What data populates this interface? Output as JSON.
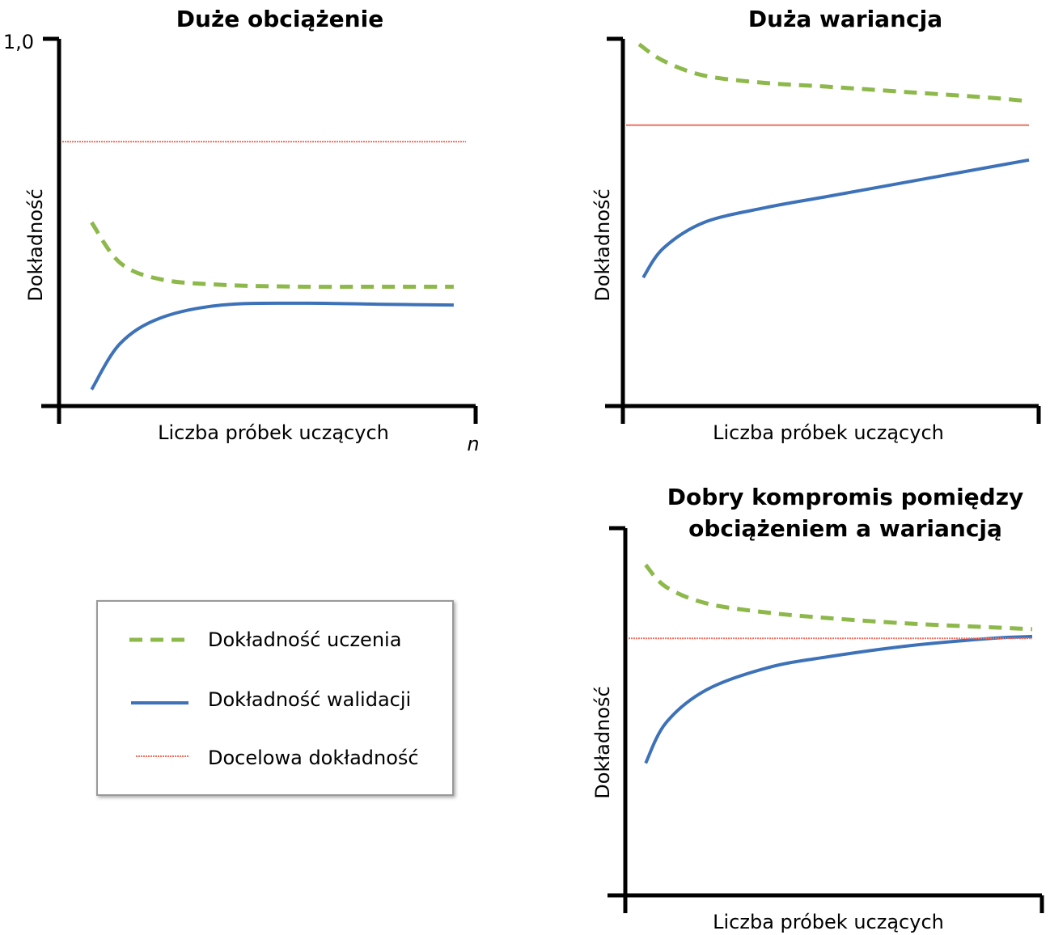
{
  "colors": {
    "train": "#8db84a",
    "val": "#3d72b8",
    "target": "#f07060",
    "axis": "#000000"
  },
  "legend": {
    "items": [
      {
        "key": "train",
        "label": "Dokładność uczenia"
      },
      {
        "key": "val",
        "label": "Dokładność walidacji"
      },
      {
        "key": "target",
        "label": "Docelowa dokładność"
      }
    ]
  },
  "chart_data": [
    {
      "type": "line",
      "title": "Duże obciążenie",
      "xlabel": "Liczba próbek uczących",
      "ylabel": "Dokładność",
      "ytick_top": "1,0",
      "x_end_label": "n",
      "xlim": [
        0,
        1
      ],
      "ylim": [
        0,
        1
      ],
      "series": [
        {
          "key": "train",
          "name": "Dokładność uczenia",
          "x": [
            0.08,
            0.15,
            0.25,
            0.4,
            0.6,
            0.8,
            0.97
          ],
          "y": [
            0.5,
            0.39,
            0.345,
            0.33,
            0.325,
            0.325,
            0.325
          ]
        },
        {
          "key": "val",
          "name": "Dokładność walidacji",
          "x": [
            0.08,
            0.15,
            0.25,
            0.4,
            0.6,
            0.8,
            0.97
          ],
          "y": [
            0.045,
            0.17,
            0.24,
            0.275,
            0.28,
            0.277,
            0.275
          ]
        },
        {
          "key": "target",
          "name": "Docelowa dokładność",
          "x": [
            0,
            1
          ],
          "y": [
            0.72,
            0.72
          ]
        }
      ]
    },
    {
      "type": "line",
      "title": "Duża wariancja",
      "xlabel": "Liczba próbek uczących",
      "ylabel": "Dokładność",
      "xlim": [
        0,
        1
      ],
      "ylim": [
        0,
        1
      ],
      "series": [
        {
          "key": "train",
          "name": "Dokładność uczenia",
          "x": [
            0.04,
            0.1,
            0.2,
            0.35,
            0.5,
            0.7,
            0.9,
            1.0
          ],
          "y": [
            0.985,
            0.94,
            0.9,
            0.88,
            0.87,
            0.855,
            0.84,
            0.83
          ]
        },
        {
          "key": "val",
          "name": "Dokładność walidacji",
          "x": [
            0.05,
            0.1,
            0.2,
            0.35,
            0.5,
            0.7,
            0.9,
            1.0
          ],
          "y": [
            0.35,
            0.43,
            0.5,
            0.54,
            0.57,
            0.61,
            0.65,
            0.67
          ]
        },
        {
          "key": "target",
          "name": "Docelowa dokładność",
          "x": [
            0,
            1
          ],
          "y": [
            0.765,
            0.765
          ]
        }
      ]
    },
    {
      "type": "line",
      "title": "Dobry kompromis pomiędzy obciążeniem a wariancją",
      "title_lines": [
        "Dobry kompromis pomiędzy",
        "obciążeniem a wariancją"
      ],
      "xlabel": "Liczba próbek uczących",
      "ylabel": "Dokładność",
      "xlim": [
        0,
        1
      ],
      "ylim": [
        0,
        1
      ],
      "series": [
        {
          "key": "train",
          "name": "Dokładność uczenia",
          "x": [
            0.05,
            0.1,
            0.2,
            0.35,
            0.5,
            0.7,
            0.9,
            1.0
          ],
          "y": [
            0.9,
            0.84,
            0.795,
            0.77,
            0.755,
            0.74,
            0.73,
            0.725
          ]
        },
        {
          "key": "val",
          "name": "Dokładność walidacji",
          "x": [
            0.05,
            0.1,
            0.2,
            0.35,
            0.5,
            0.7,
            0.9,
            1.0
          ],
          "y": [
            0.36,
            0.47,
            0.56,
            0.62,
            0.65,
            0.68,
            0.7,
            0.705
          ]
        },
        {
          "key": "target",
          "name": "Docelowa dokładność",
          "x": [
            0,
            1
          ],
          "y": [
            0.7,
            0.7
          ]
        }
      ]
    }
  ]
}
